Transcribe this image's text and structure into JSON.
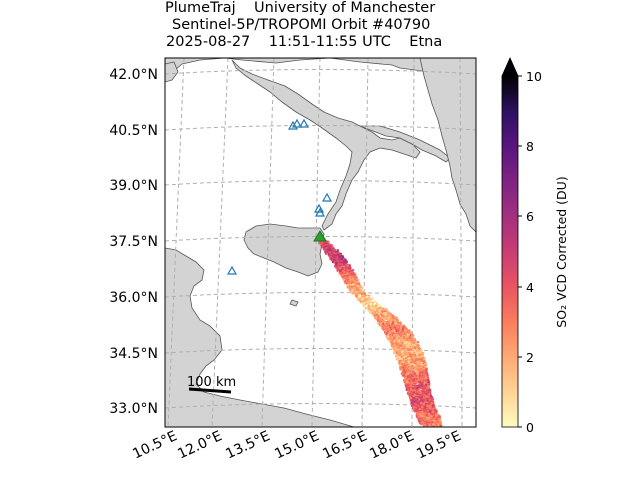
{
  "title": {
    "line1": "PlumeTraj    University of Manchester",
    "line2": "Sentinel-5P/TROPOMI Orbit #40790",
    "line3": "2025-08-27    11:51-11:55 UTC    Etna"
  },
  "map": {
    "lat_labels": [
      "42.0°N",
      "40.5°N",
      "39.0°N",
      "37.5°N",
      "36.0°N",
      "34.5°N",
      "33.0°N"
    ],
    "lon_labels": [
      "10.5°E",
      "12.0°E",
      "13.5°E",
      "15.0°E",
      "16.5°E",
      "18.0°E",
      "19.5°E"
    ],
    "scale_bar_label": "100 km",
    "land_color": "#d3d3d3",
    "volcano": "Etna",
    "volcano_marker_color": "#2ca02c",
    "other_volcano_marker_color": "#1f77b4"
  },
  "colorbar": {
    "label": "SO₂ VCD Corrected (DU)",
    "ticks": [
      "0",
      "2",
      "4",
      "6",
      "8",
      "10"
    ],
    "min": 0,
    "max": 10,
    "extend": "max",
    "colormap": "magma_r"
  }
}
